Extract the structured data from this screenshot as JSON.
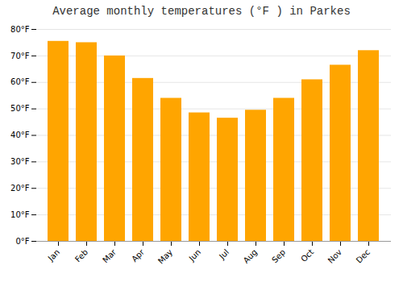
{
  "chart_data": {
    "type": "bar",
    "title": "Average monthly temperatures (°F ) in Parkes",
    "categories": [
      "Jan",
      "Feb",
      "Mar",
      "Apr",
      "May",
      "Jun",
      "Jul",
      "Aug",
      "Sep",
      "Oct",
      "Nov",
      "Dec"
    ],
    "values": [
      75.5,
      75.0,
      70.0,
      61.5,
      54.0,
      48.5,
      46.5,
      49.5,
      54.0,
      61.0,
      66.5,
      72.0
    ],
    "color": "#FFA500",
    "ylim": [
      0,
      80
    ],
    "yticks": [
      {
        "value": 0,
        "label": "0°F"
      },
      {
        "value": 10,
        "label": "10°F"
      },
      {
        "value": 20,
        "label": "20°F"
      },
      {
        "value": 30,
        "label": "30°F"
      },
      {
        "value": 40,
        "label": "40°F"
      },
      {
        "value": 50,
        "label": "50°F"
      },
      {
        "value": 60,
        "label": "60°F"
      },
      {
        "value": 70,
        "label": "70°F"
      },
      {
        "value": 80,
        "label": "80°F"
      }
    ],
    "grid": true
  }
}
